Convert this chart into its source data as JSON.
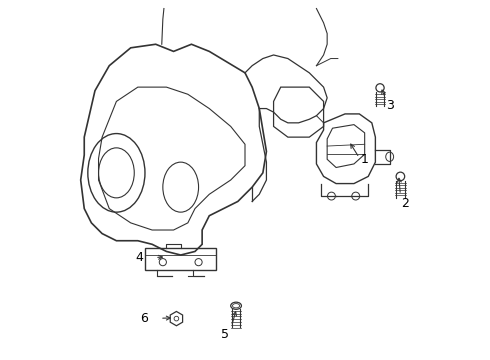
{
  "background_color": "#ffffff",
  "line_color": "#333333",
  "label_color": "#000000",
  "fig_width": 4.9,
  "fig_height": 3.6,
  "dpi": 100,
  "default_lw": 1.0
}
